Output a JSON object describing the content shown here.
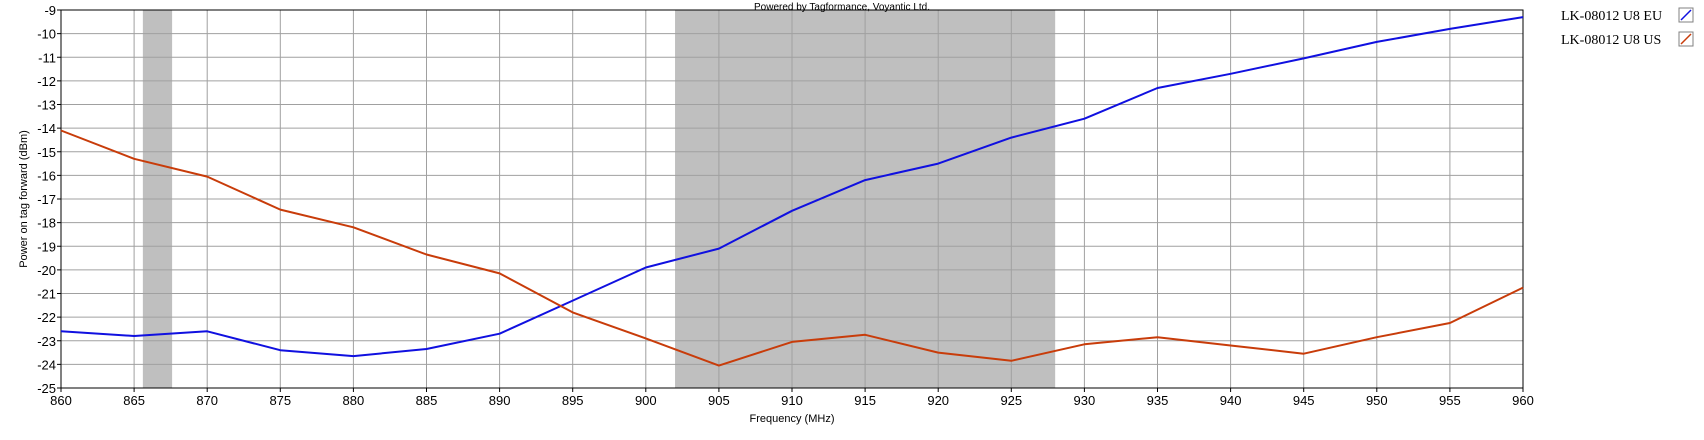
{
  "chart_data": {
    "type": "line",
    "credit": "Powered by Tagformance, Voyantic Ltd.",
    "xlabel": "Frequency (MHz)",
    "ylabel": "Power on tag forward (dBm)",
    "xlim": [
      860,
      960
    ],
    "ylim": [
      -25,
      -9
    ],
    "x_ticks": [
      860,
      865,
      870,
      875,
      880,
      885,
      890,
      895,
      900,
      905,
      910,
      915,
      920,
      925,
      930,
      935,
      940,
      945,
      950,
      955,
      960
    ],
    "y_ticks": [
      -9,
      -10,
      -11,
      -12,
      -13,
      -14,
      -15,
      -16,
      -17,
      -18,
      -19,
      -20,
      -21,
      -22,
      -23,
      -24,
      -25
    ],
    "grid": true,
    "legend_position": "right",
    "shaded_bands": [
      {
        "from": 865.6,
        "to": 867.6,
        "color": "#bfbfbf"
      },
      {
        "from": 902,
        "to": 928,
        "color": "#bfbfbf"
      }
    ],
    "x": [
      860,
      865,
      870,
      875,
      880,
      885,
      890,
      895,
      900,
      905,
      910,
      915,
      920,
      925,
      930,
      935,
      940,
      945,
      950,
      955,
      960
    ],
    "series": [
      {
        "name": "LK-08012 U8 EU",
        "color": "#1010e0",
        "values": [
          -22.6,
          -22.8,
          -22.6,
          -23.4,
          -23.65,
          -23.35,
          -22.7,
          -21.3,
          -19.9,
          -19.1,
          -17.5,
          -16.2,
          -15.5,
          -14.4,
          -13.6,
          -12.3,
          -11.7,
          -11.05,
          -10.35,
          -9.8,
          -9.3
        ]
      },
      {
        "name": "LK-08012 U8 US",
        "color": "#c83c0a",
        "values": [
          -14.1,
          -15.3,
          -16.05,
          -17.45,
          -18.2,
          -19.35,
          -20.15,
          -21.8,
          -22.9,
          -24.05,
          -23.05,
          -22.75,
          -23.5,
          -23.85,
          -23.15,
          -22.85,
          -23.2,
          -23.55,
          -22.85,
          -22.25,
          -20.75
        ]
      }
    ]
  }
}
